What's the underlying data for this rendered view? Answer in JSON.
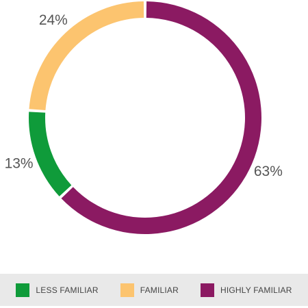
{
  "chart_data": {
    "type": "pie",
    "title": "",
    "categories": [
      "LESS FAMILIAR",
      "FAMILIAR",
      "HIGHLY FAMILIAR"
    ],
    "values": [
      13,
      24,
      63
    ],
    "labels": [
      "13%",
      "24%",
      "63%"
    ],
    "colors": [
      "#0f9b3a",
      "#fcc46f",
      "#8b1a62"
    ],
    "donut": true,
    "legend_position": "bottom"
  }
}
